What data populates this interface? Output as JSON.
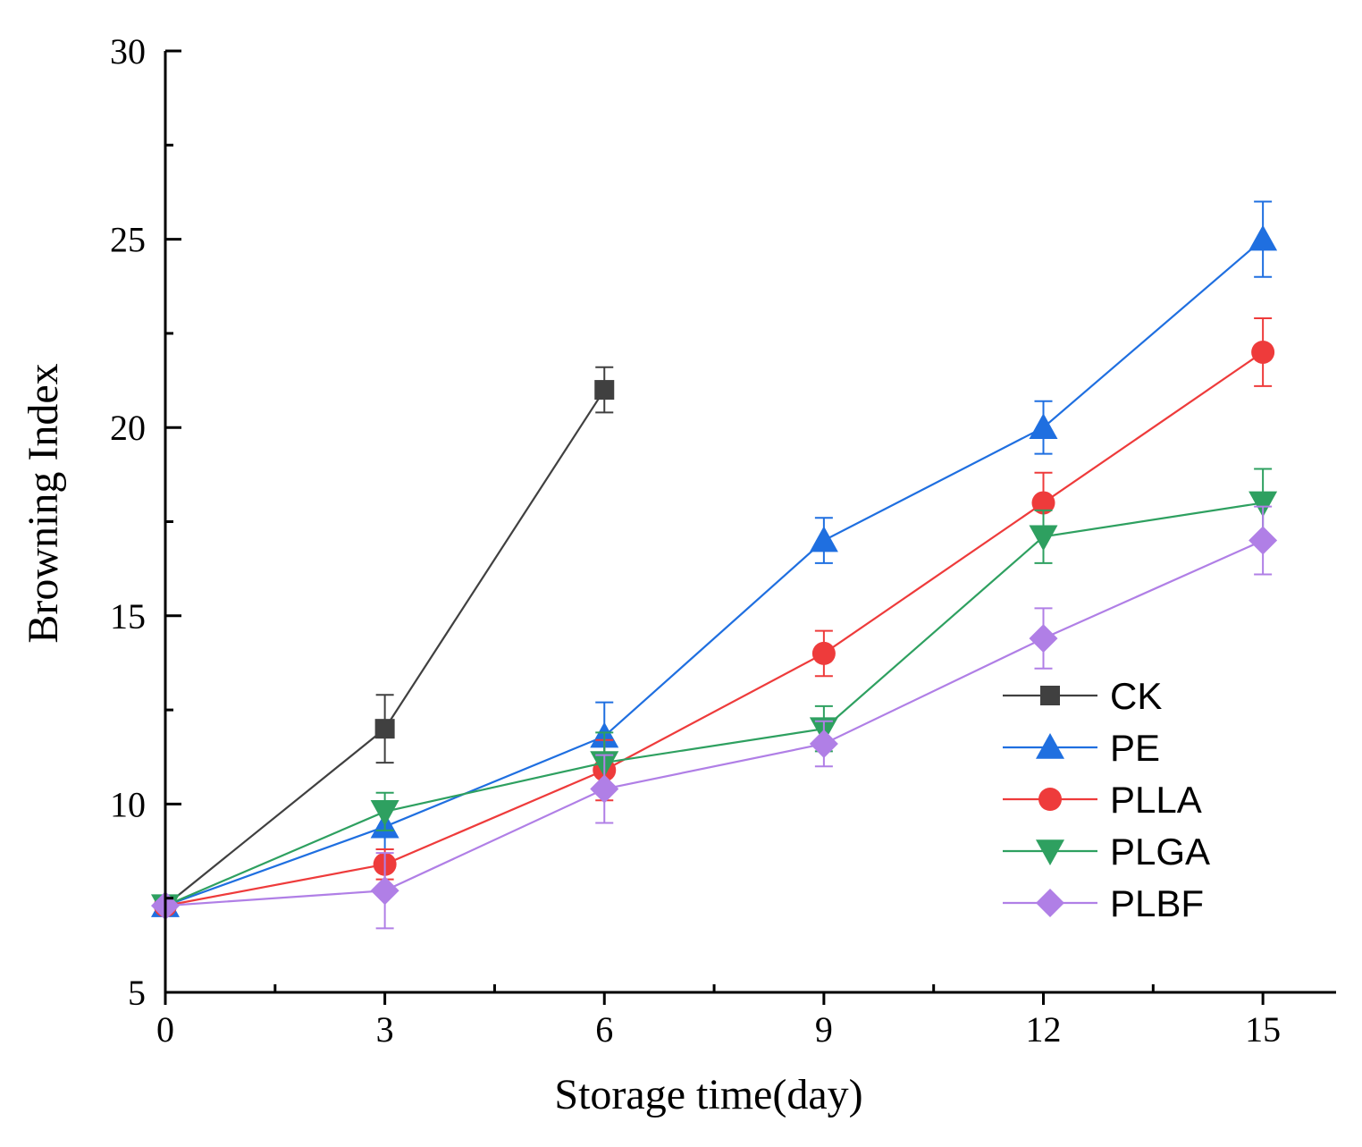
{
  "chart_data": {
    "type": "line",
    "title": "",
    "xlabel": "Storage time(day)",
    "ylabel": "Browning Index",
    "xlim": [
      0,
      16.0
    ],
    "ylim": [
      5,
      30
    ],
    "x_ticks": [
      0,
      3,
      6,
      9,
      12,
      15
    ],
    "x_minor_ticks": [
      1.5,
      4.5,
      7.5,
      10.5,
      13.5
    ],
    "y_ticks": [
      5,
      10,
      15,
      20,
      25,
      30
    ],
    "grid": false,
    "legend_position": "right-middle",
    "series": [
      {
        "name": "CK",
        "color": "#404040",
        "marker": "square",
        "x": [
          0,
          3,
          6
        ],
        "values": [
          7.3,
          12.0,
          21.0
        ],
        "errors": [
          0.1,
          0.9,
          0.6
        ]
      },
      {
        "name": "PE",
        "color": "#1f6fe0",
        "marker": "triangle-up",
        "x": [
          0,
          3,
          6,
          9,
          12,
          15
        ],
        "values": [
          7.3,
          9.4,
          11.8,
          17.0,
          20.0,
          25.0
        ],
        "errors": [
          0.1,
          0.6,
          0.9,
          0.6,
          0.7,
          1.0
        ]
      },
      {
        "name": "PLLA",
        "color": "#ee3b3b",
        "marker": "circle",
        "x": [
          0,
          3,
          6,
          9,
          12,
          15
        ],
        "values": [
          7.3,
          8.4,
          10.9,
          14.0,
          18.0,
          22.0
        ],
        "errors": [
          0.1,
          0.4,
          0.8,
          0.6,
          0.8,
          0.9
        ]
      },
      {
        "name": "PLGA",
        "color": "#2ea060",
        "marker": "triangle-down",
        "x": [
          0,
          3,
          6,
          9,
          12,
          15
        ],
        "values": [
          7.3,
          9.8,
          11.1,
          12.0,
          17.1,
          18.0
        ],
        "errors": [
          0.1,
          0.5,
          0.8,
          0.6,
          0.7,
          0.9
        ]
      },
      {
        "name": "PLBF",
        "color": "#b07fe6",
        "marker": "diamond",
        "x": [
          0,
          3,
          6,
          9,
          12,
          15
        ],
        "values": [
          7.3,
          7.7,
          10.4,
          11.6,
          14.4,
          17.0
        ],
        "errors": [
          0.1,
          1.0,
          0.9,
          0.6,
          0.8,
          0.9
        ]
      }
    ]
  }
}
